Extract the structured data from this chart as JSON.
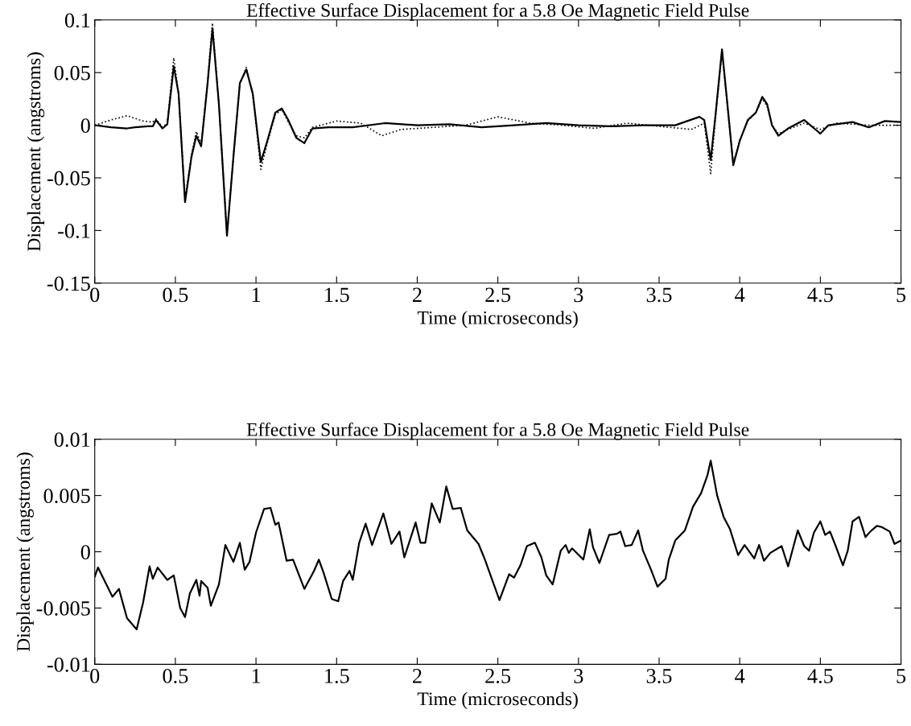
{
  "chart_data": [
    {
      "type": "line",
      "title": "Effective Surface Displacement for a 5.8 Oe Magnetic Field Pulse",
      "xlabel": "Time (microseconds)",
      "ylabel": "Displacement (angstroms)",
      "xlim": [
        0,
        5
      ],
      "ylim": [
        -0.15,
        0.1
      ],
      "xticks": [
        0,
        0.5,
        1,
        1.5,
        2,
        2.5,
        3,
        3.5,
        4,
        4.5,
        5
      ],
      "yticks": [
        -0.15,
        -0.1,
        -0.05,
        0,
        0.05,
        0.1
      ],
      "grid": false,
      "series": [
        {
          "color": "#000000",
          "line_style": "solid",
          "x": [
            0,
            0.1,
            0.2,
            0.25,
            0.33,
            0.36,
            0.38,
            0.42,
            0.45,
            0.49,
            0.52,
            0.56,
            0.6,
            0.63,
            0.66,
            0.7,
            0.73,
            0.77,
            0.82,
            0.86,
            0.9,
            0.94,
            0.98,
            1.03,
            1.07,
            1.12,
            1.16,
            1.2,
            1.25,
            1.3,
            1.35,
            1.45,
            1.6,
            1.8,
            2.0,
            2.2,
            2.4,
            2.6,
            2.8,
            3.0,
            3.2,
            3.4,
            3.6,
            3.75,
            3.78,
            3.82,
            3.85,
            3.89,
            3.93,
            3.96,
            4.0,
            4.05,
            4.1,
            4.14,
            4.17,
            4.2,
            4.24,
            4.3,
            4.4,
            4.5,
            4.55,
            4.7,
            4.8,
            4.9,
            5.0
          ],
          "values": [
            0,
            -0.002,
            -0.003,
            -0.002,
            -0.001,
            -0.001,
            0.005,
            -0.003,
            0.001,
            0.056,
            0.03,
            -0.073,
            -0.03,
            -0.01,
            -0.02,
            0.04,
            0.092,
            0.02,
            -0.105,
            -0.03,
            0.04,
            0.053,
            0.03,
            -0.035,
            -0.015,
            0.012,
            0.016,
            0.005,
            -0.012,
            -0.017,
            -0.003,
            -0.002,
            -0.002,
            0.002,
            0,
            0.001,
            -0.002,
            0,
            0.002,
            0,
            -0.001,
            0,
            0,
            0.008,
            0.005,
            -0.033,
            0.01,
            0.072,
            0.01,
            -0.038,
            -0.015,
            0.005,
            0.012,
            0.027,
            0.02,
            0,
            -0.01,
            -0.003,
            0.005,
            -0.008,
            0,
            0.003,
            -0.002,
            0.004,
            0.003
          ]
        },
        {
          "color": "#000000",
          "line_style": "dotted",
          "x": [
            0,
            0.1,
            0.2,
            0.3,
            0.36,
            0.38,
            0.42,
            0.45,
            0.49,
            0.52,
            0.56,
            0.6,
            0.63,
            0.66,
            0.7,
            0.73,
            0.77,
            0.82,
            0.86,
            0.9,
            0.94,
            0.98,
            1.03,
            1.07,
            1.12,
            1.16,
            1.2,
            1.25,
            1.3,
            1.35,
            1.5,
            1.65,
            1.78,
            1.9,
            2.1,
            2.3,
            2.5,
            2.7,
            2.9,
            3.1,
            3.3,
            3.5,
            3.7,
            3.78,
            3.82,
            3.85,
            3.89,
            3.93,
            3.96,
            4.0,
            4.05,
            4.1,
            4.14,
            4.17,
            4.2,
            4.24,
            4.3,
            4.4,
            4.5,
            4.6,
            4.8,
            5.0
          ],
          "values": [
            0,
            0.005,
            0.009,
            0.004,
            0.003,
            0.006,
            -0.002,
            0.002,
            0.064,
            0.03,
            -0.07,
            -0.028,
            -0.006,
            -0.018,
            0.042,
            0.097,
            0.02,
            -0.103,
            -0.03,
            0.04,
            0.055,
            0.03,
            -0.042,
            -0.017,
            0.01,
            0.015,
            0.003,
            -0.01,
            -0.012,
            -0.002,
            0.004,
            0.002,
            -0.01,
            -0.004,
            -0.002,
            0,
            0.008,
            0.002,
            0,
            -0.003,
            0.002,
            -0.001,
            -0.004,
            0.002,
            -0.046,
            0.008,
            0.07,
            0.008,
            -0.036,
            -0.014,
            0.004,
            0.012,
            0.025,
            0.018,
            0,
            -0.008,
            -0.004,
            0.002,
            -0.004,
            0.002,
            0,
            0
          ]
        }
      ]
    },
    {
      "type": "line",
      "title": "Effective Surface Displacement for a 5.8 Oe Magnetic Field Pulse",
      "xlabel": "Time (microseconds)",
      "ylabel": "Displacement (angstroms)",
      "xlim": [
        0,
        5
      ],
      "ylim": [
        -0.01,
        0.01
      ],
      "xticks": [
        0,
        0.5,
        1,
        1.5,
        2,
        2.5,
        3,
        3.5,
        4,
        4.5,
        5
      ],
      "yticks": [
        -0.01,
        -0.005,
        0,
        0.005,
        0.01
      ],
      "grid": false,
      "series": [
        {
          "color": "#000000",
          "line_style": "solid",
          "x": [
            0,
            0.02,
            0.11,
            0.15,
            0.2,
            0.26,
            0.3,
            0.34,
            0.36,
            0.39,
            0.45,
            0.49,
            0.53,
            0.56,
            0.59,
            0.63,
            0.65,
            0.66,
            0.7,
            0.72,
            0.77,
            0.81,
            0.86,
            0.9,
            0.93,
            0.96,
            1.0,
            1.05,
            1.09,
            1.12,
            1.14,
            1.19,
            1.23,
            1.3,
            1.36,
            1.39,
            1.42,
            1.47,
            1.51,
            1.54,
            1.58,
            1.6,
            1.64,
            1.68,
            1.72,
            1.79,
            1.84,
            1.89,
            1.92,
            1.99,
            2.02,
            2.05,
            2.09,
            2.14,
            2.18,
            2.22,
            2.27,
            2.31,
            2.38,
            2.42,
            2.47,
            2.51,
            2.57,
            2.6,
            2.64,
            2.68,
            2.73,
            2.77,
            2.8,
            2.84,
            2.89,
            2.92,
            2.94,
            2.96,
            3.03,
            3.07,
            3.09,
            3.13,
            3.19,
            3.24,
            3.26,
            3.29,
            3.33,
            3.37,
            3.4,
            3.45,
            3.49,
            3.54,
            3.56,
            3.6,
            3.66,
            3.71,
            3.76,
            3.8,
            3.82,
            3.86,
            3.9,
            3.94,
            3.99,
            4.03,
            4.05,
            4.09,
            4.12,
            4.15,
            4.19,
            4.26,
            4.3,
            4.36,
            4.4,
            4.43,
            4.46,
            4.5,
            4.53,
            4.56,
            4.59,
            4.64,
            4.67,
            4.7,
            4.74,
            4.78,
            4.81,
            4.85,
            4.88,
            4.93,
            4.96,
            5.0
          ],
          "values": [
            -0.0022,
            -0.0014,
            -0.004,
            -0.0033,
            -0.0059,
            -0.0069,
            -0.0045,
            -0.0013,
            -0.0024,
            -0.0014,
            -0.0025,
            -0.0021,
            -0.005,
            -0.0058,
            -0.0037,
            -0.0025,
            -0.0039,
            -0.0026,
            -0.0032,
            -0.0048,
            -0.0029,
            0.0006,
            -0.0009,
            0.0008,
            -0.0016,
            -0.0009,
            0.0017,
            0.0038,
            0.0039,
            0.0024,
            0.0026,
            -0.0008,
            -0.0007,
            -0.0033,
            -0.0017,
            -0.0007,
            -0.0019,
            -0.0042,
            -0.0044,
            -0.0026,
            -0.0017,
            -0.0025,
            0.0008,
            0.0025,
            0.0006,
            0.0034,
            0.0007,
            0.0018,
            -0.0005,
            0.0026,
            0.0008,
            0.0008,
            0.0043,
            0.0026,
            0.0058,
            0.0038,
            0.0039,
            0.0019,
            0.0007,
            -0.0007,
            -0.0027,
            -0.0043,
            -0.002,
            -0.0023,
            -0.0012,
            0.0005,
            0.0008,
            -0.0005,
            -0.0021,
            -0.0029,
            0.0001,
            0.0006,
            -0.0001,
            0.0003,
            -0.0007,
            0.002,
            0.0004,
            -0.001,
            0.0015,
            0.0016,
            0.0018,
            0.0005,
            0.0006,
            0.0019,
            0.0001,
            -0.0016,
            -0.0031,
            -0.0024,
            -0.0007,
            0.001,
            0.0019,
            0.004,
            0.0052,
            0.0068,
            0.0081,
            0.005,
            0.0031,
            0.002,
            -0.0003,
            0.0006,
            0.0002,
            -0.0006,
            0.0006,
            -0.0008,
            -0.0001,
            0.0005,
            -0.0013,
            0.0019,
            0.0005,
            0.0001,
            0.0017,
            0.0027,
            0.0015,
            0.0018,
            0.0007,
            -0.0012,
            0.0001,
            0.0027,
            0.0031,
            0.0013,
            0.0018,
            0.0023,
            0.0022,
            0.0018,
            0.0007,
            0.001
          ]
        }
      ]
    }
  ]
}
